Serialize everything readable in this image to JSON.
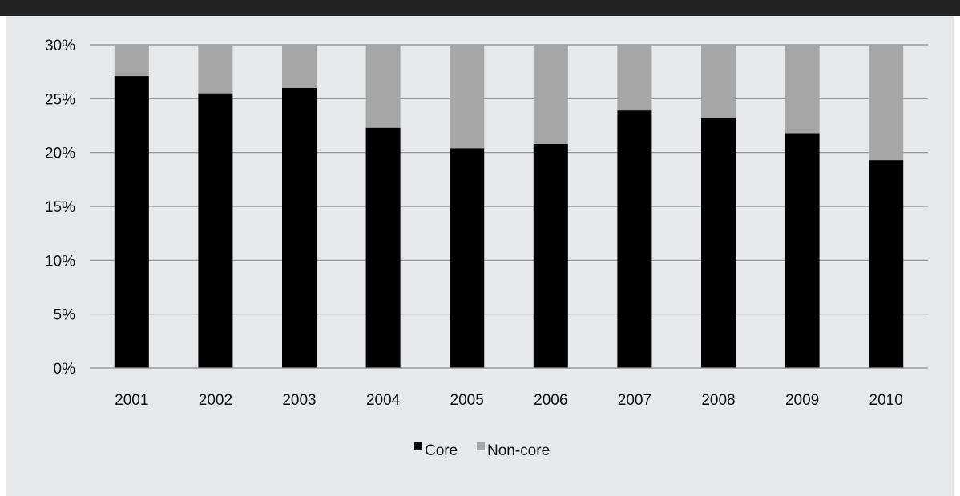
{
  "chart_data": {
    "type": "bar",
    "stacked": true,
    "categories": [
      "2001",
      "2002",
      "2003",
      "2004",
      "2005",
      "2006",
      "2007",
      "2008",
      "2009",
      "2010"
    ],
    "series": [
      {
        "name": "Core",
        "color": "#000000",
        "values": [
          27.1,
          25.5,
          26.0,
          22.3,
          20.4,
          20.8,
          23.9,
          23.2,
          21.8,
          19.3
        ]
      },
      {
        "name": "Non-core",
        "color": "#a6a6a6",
        "values": [
          2.9,
          4.5,
          4.0,
          7.7,
          9.6,
          9.2,
          6.1,
          6.8,
          8.2,
          10.7
        ]
      }
    ],
    "y_ticks": [
      "0%",
      "5%",
      "10%",
      "15%",
      "20%",
      "25%",
      "30%"
    ],
    "ylim": [
      0,
      30
    ],
    "y_tick_step": 5,
    "grid": true,
    "legend_position": "bottom"
  }
}
